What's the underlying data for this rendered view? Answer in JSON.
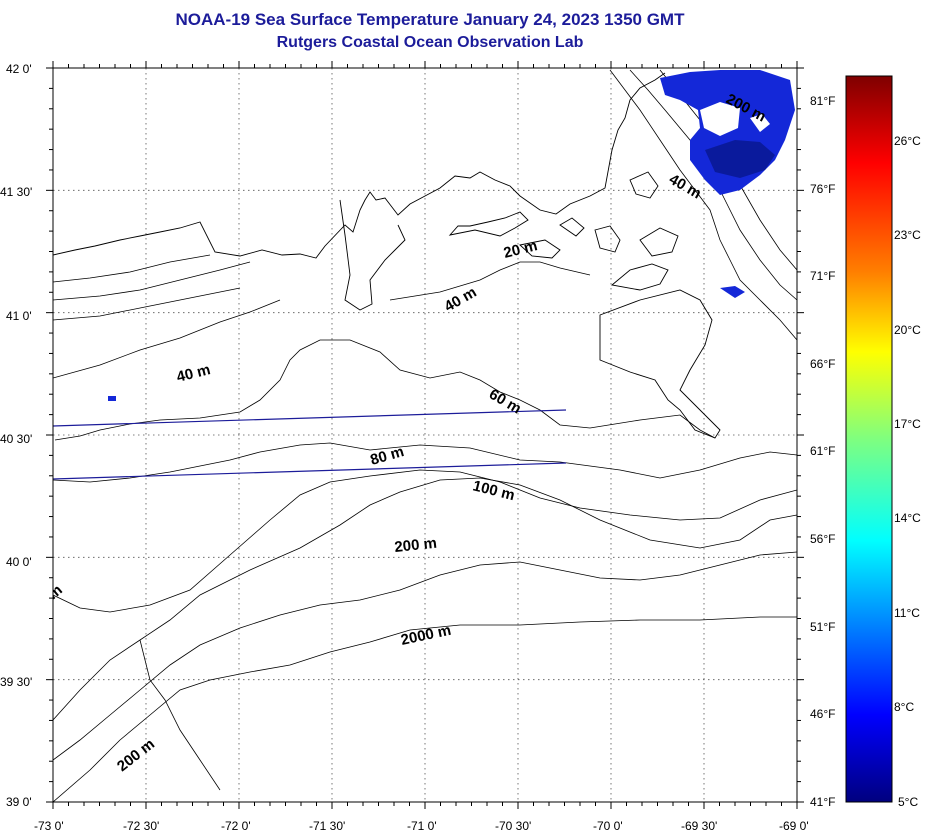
{
  "header": {
    "title": "NOAA-19 Sea Surface Temperature January 24, 2023 1350 GMT",
    "subtitle": "Rutgers Coastal Ocean Observation Lab"
  },
  "map": {
    "lat_labels": [
      "42 0'",
      "41 30'",
      "41 0'",
      "40 30'",
      "40 0'",
      "39 30'",
      "39 0'"
    ],
    "lon_labels": [
      "-73 0'",
      "-72 30'",
      "-72 0'",
      "-71 30'",
      "-71 0'",
      "-70 30'",
      "-70 0'",
      "-69 30'",
      "-69 0'"
    ],
    "lat_range": [
      39.0,
      42.0
    ],
    "lon_range": [
      -73.0,
      -69.0
    ],
    "contour_labels": [
      "20 m",
      "40 m",
      "40 m",
      "40 m",
      "60 m",
      "80 m",
      "100 m",
      "200 m",
      "200 m",
      "2000 m",
      "200 m",
      "m"
    ]
  },
  "colorbar": {
    "f_labels": [
      "81°F",
      "76°F",
      "71°F",
      "66°F",
      "61°F",
      "56°F",
      "51°F",
      "46°F",
      "41°F"
    ],
    "c_labels": [
      "26°C",
      "23°C",
      "20°C",
      "17°C",
      "14°C",
      "11°C",
      "8°C",
      "5°C"
    ],
    "range_c": [
      5,
      28
    ],
    "colors": [
      "#7f0000",
      "#ff0000",
      "#ff7f00",
      "#ffff00",
      "#7fff7f",
      "#00ffff",
      "#007fff",
      "#0000ff",
      "#00007f"
    ]
  }
}
